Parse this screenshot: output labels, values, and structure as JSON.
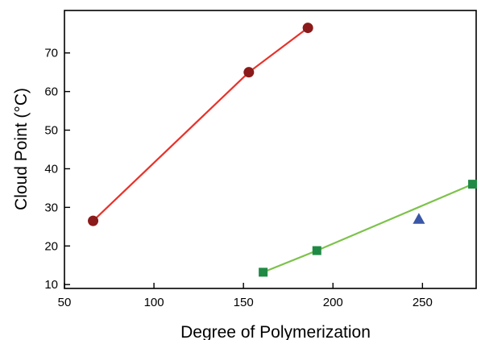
{
  "chart_data": {
    "type": "scatter",
    "xlabel": "Degree of Polymerization",
    "ylabel": "Cloud Point (°C)",
    "xlim": [
      50,
      280
    ],
    "ylim": [
      9,
      81
    ],
    "x_ticks": [
      50,
      100,
      150,
      200,
      250
    ],
    "y_ticks": [
      10,
      20,
      30,
      40,
      50,
      60,
      70
    ],
    "grid": false,
    "legend": "none",
    "series": [
      {
        "marker": "circle",
        "color": "#8b1a1a",
        "line_color": "#e8322a",
        "line": true,
        "x": [
          66,
          153,
          186
        ],
        "y": [
          26.5,
          65,
          76.5
        ]
      },
      {
        "marker": "square",
        "color": "#1f8a44",
        "line_color": "#7dc24a",
        "line": true,
        "x": [
          161,
          191,
          278
        ],
        "y": [
          13.2,
          18.8,
          36
        ]
      },
      {
        "marker": "triangle",
        "color": "#3a56a6",
        "line": false,
        "x": [
          248
        ],
        "y": [
          27
        ]
      }
    ]
  }
}
